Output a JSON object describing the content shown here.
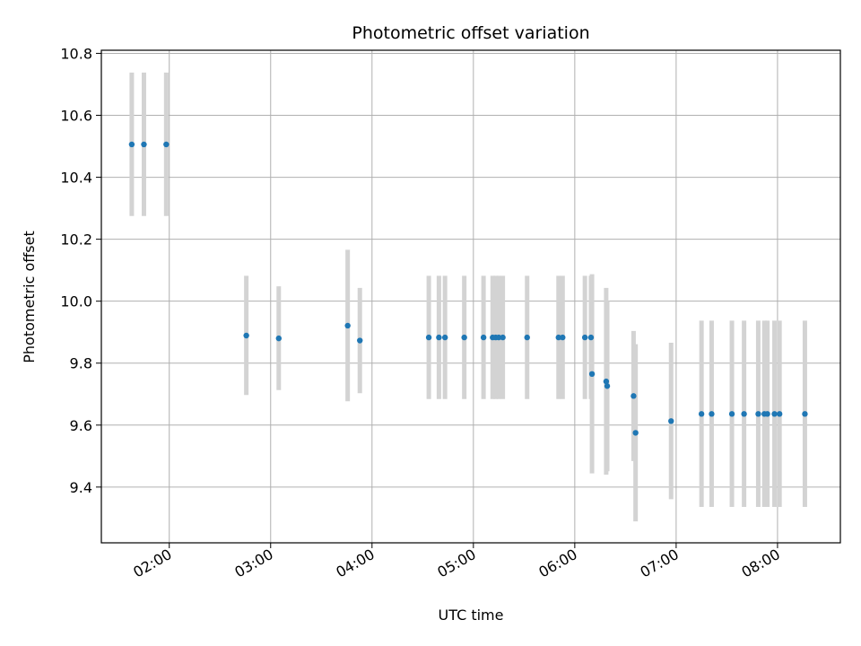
{
  "chart_data": {
    "type": "scatter",
    "title": "Photometric offset variation",
    "xlabel": "UTC time",
    "ylabel": "Photometric offset",
    "x_unit": "hours UTC",
    "xlim": [
      1.33,
      8.62
    ],
    "ylim": [
      9.22,
      10.81
    ],
    "x_ticks": [
      {
        "value": 2,
        "label": "02:00"
      },
      {
        "value": 3,
        "label": "03:00"
      },
      {
        "value": 4,
        "label": "04:00"
      },
      {
        "value": 5,
        "label": "05:00"
      },
      {
        "value": 6,
        "label": "06:00"
      },
      {
        "value": 7,
        "label": "07:00"
      },
      {
        "value": 8,
        "label": "08:00"
      }
    ],
    "y_ticks": [
      {
        "value": 9.4,
        "label": "9.4"
      },
      {
        "value": 9.6,
        "label": "9.6"
      },
      {
        "value": 9.8,
        "label": "9.8"
      },
      {
        "value": 10.0,
        "label": "10.0"
      },
      {
        "value": 10.2,
        "label": "10.2"
      },
      {
        "value": 10.4,
        "label": "10.4"
      },
      {
        "value": 10.6,
        "label": "10.6"
      },
      {
        "value": 10.8,
        "label": "10.8"
      }
    ],
    "grid": true,
    "colors": {
      "marker": "#1f77b4",
      "errorbar": "#d3d3d3",
      "grid": "#b0b0b0"
    },
    "points": [
      {
        "x": 1.63,
        "y": 10.506,
        "err_low": 10.275,
        "err_high": 10.738
      },
      {
        "x": 1.75,
        "y": 10.506,
        "err_low": 10.275,
        "err_high": 10.738
      },
      {
        "x": 1.97,
        "y": 10.506,
        "err_low": 10.275,
        "err_high": 10.738
      },
      {
        "x": 2.76,
        "y": 9.889,
        "err_low": 9.697,
        "err_high": 10.082
      },
      {
        "x": 3.08,
        "y": 9.88,
        "err_low": 9.713,
        "err_high": 10.048
      },
      {
        "x": 3.76,
        "y": 9.921,
        "err_low": 9.677,
        "err_high": 10.166
      },
      {
        "x": 3.88,
        "y": 9.873,
        "err_low": 9.703,
        "err_high": 10.043
      },
      {
        "x": 4.56,
        "y": 9.883,
        "err_low": 9.684,
        "err_high": 10.082
      },
      {
        "x": 4.66,
        "y": 9.883,
        "err_low": 9.684,
        "err_high": 10.082
      },
      {
        "x": 4.72,
        "y": 9.883,
        "err_low": 9.684,
        "err_high": 10.082
      },
      {
        "x": 4.91,
        "y": 9.883,
        "err_low": 9.684,
        "err_high": 10.082
      },
      {
        "x": 5.1,
        "y": 9.883,
        "err_low": 9.684,
        "err_high": 10.082
      },
      {
        "x": 5.19,
        "y": 9.883,
        "err_low": 9.684,
        "err_high": 10.082
      },
      {
        "x": 5.22,
        "y": 9.883,
        "err_low": 9.684,
        "err_high": 10.082
      },
      {
        "x": 5.25,
        "y": 9.883,
        "err_low": 9.684,
        "err_high": 10.082
      },
      {
        "x": 5.29,
        "y": 9.883,
        "err_low": 9.684,
        "err_high": 10.082
      },
      {
        "x": 5.53,
        "y": 9.883,
        "err_low": 9.684,
        "err_high": 10.082
      },
      {
        "x": 5.84,
        "y": 9.883,
        "err_low": 9.684,
        "err_high": 10.082
      },
      {
        "x": 5.88,
        "y": 9.883,
        "err_low": 9.684,
        "err_high": 10.082
      },
      {
        "x": 6.1,
        "y": 9.883,
        "err_low": 9.684,
        "err_high": 10.082
      },
      {
        "x": 6.16,
        "y": 9.883,
        "err_low": 9.684,
        "err_high": 10.082
      },
      {
        "x": 6.17,
        "y": 9.765,
        "err_low": 9.444,
        "err_high": 10.087
      },
      {
        "x": 6.31,
        "y": 9.741,
        "err_low": 9.44,
        "err_high": 10.043
      },
      {
        "x": 6.32,
        "y": 9.726,
        "err_low": 9.451,
        "err_high": 10.0
      },
      {
        "x": 6.58,
        "y": 9.694,
        "err_low": 9.484,
        "err_high": 9.904
      },
      {
        "x": 6.6,
        "y": 9.575,
        "err_low": 9.289,
        "err_high": 9.861
      },
      {
        "x": 6.95,
        "y": 9.613,
        "err_low": 9.361,
        "err_high": 9.866
      },
      {
        "x": 7.25,
        "y": 9.636,
        "err_low": 9.336,
        "err_high": 9.937
      },
      {
        "x": 7.35,
        "y": 9.636,
        "err_low": 9.336,
        "err_high": 9.937
      },
      {
        "x": 7.55,
        "y": 9.636,
        "err_low": 9.336,
        "err_high": 9.937
      },
      {
        "x": 7.67,
        "y": 9.636,
        "err_low": 9.336,
        "err_high": 9.937
      },
      {
        "x": 7.81,
        "y": 9.636,
        "err_low": 9.336,
        "err_high": 9.937
      },
      {
        "x": 7.87,
        "y": 9.636,
        "err_low": 9.336,
        "err_high": 9.937
      },
      {
        "x": 7.9,
        "y": 9.636,
        "err_low": 9.336,
        "err_high": 9.937
      },
      {
        "x": 7.97,
        "y": 9.636,
        "err_low": 9.336,
        "err_high": 9.937
      },
      {
        "x": 8.02,
        "y": 9.636,
        "err_low": 9.336,
        "err_high": 9.937
      },
      {
        "x": 8.27,
        "y": 9.636,
        "err_low": 9.336,
        "err_high": 9.937
      }
    ]
  }
}
